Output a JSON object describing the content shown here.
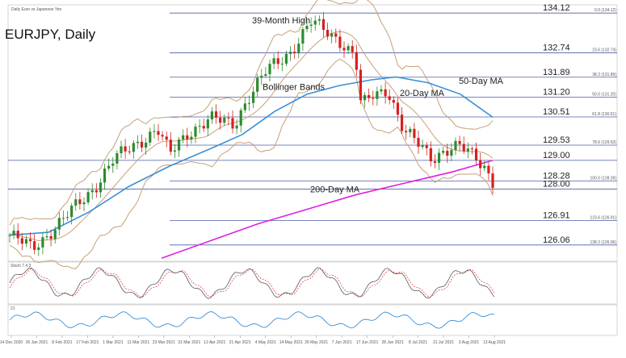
{
  "chart_data": {
    "type": "candlestick",
    "title": "EURJPY, Daily",
    "subtitle": "Daily Euro vs Japanese Yen",
    "y_range": [
      125.55,
      134.35
    ],
    "x_tick_labels": [
      "14 Dec 2020",
      "26 Jan 2021",
      "8 Feb 2021",
      "17 Feb 2021",
      "1 Mar 2021",
      "11 Mar 2021",
      "23 Mar 2021",
      "31 Mar 2021",
      "12 Apr 2021",
      "21 Apr 2021",
      "4 May 2021",
      "14 May 2021",
      "26 May 2021",
      "7 Jun 2021",
      "17 Jun 2021",
      "28 Jun 2021",
      "8 Jul 2021",
      "21 Jul 2021",
      "3 Aug 2021",
      "13 Aug 2021"
    ],
    "level_lines": [
      {
        "value": 134.12,
        "label": "134.12",
        "fib": "0.0 (134.12)"
      },
      {
        "value": 132.74,
        "label": "132.74",
        "fib": "23.6 (132.74)"
      },
      {
        "value": 131.89,
        "label": "131.89",
        "fib": "38.2 (131.89)"
      },
      {
        "value": 131.2,
        "label": "131.20",
        "fib": "50.0 (131.20)"
      },
      {
        "value": 130.51,
        "label": "130.51",
        "fib": "61.8 (130.51)"
      },
      {
        "value": 129.53,
        "label": "129.53",
        "fib": "78.6 (129.53)"
      },
      {
        "value": 129.0,
        "label": "129.00",
        "fib": ""
      },
      {
        "value": 128.28,
        "label": "128.28",
        "fib": "100.0 (128.28)"
      },
      {
        "value": 128.0,
        "label": "128.00",
        "fib": ""
      },
      {
        "value": 126.91,
        "label": "126.91",
        "fib": "123.6 (126.91)"
      },
      {
        "value": 126.06,
        "label": "126.06",
        "fib": "138.2 (126.06)"
      }
    ],
    "annotations": [
      {
        "text": "39-Month High",
        "anchor_value": 134.1
      },
      {
        "text": "Bollinger Bands",
        "anchor_value": 131.4
      },
      {
        "text": "20-Day MA",
        "anchor_value": 131.35
      },
      {
        "text": "50-Day MA",
        "anchor_value": 131.55
      },
      {
        "text": "200-Day MA",
        "anchor_value": 127.95
      }
    ],
    "indicator_labels": {
      "stochastic": "Stoch 7.4 3",
      "rsi": "21"
    },
    "colors": {
      "bull": "#2e8b2e",
      "bear": "#d62020",
      "ma50": "#3a8fd8",
      "ma200": "#e020e0",
      "bands": "#c8a078",
      "ma20": "#c8a078",
      "levels": "#4a5fa8",
      "stoch_k": "#444444",
      "stoch_d": "#e03030",
      "rsi": "#3a8fd8"
    }
  }
}
